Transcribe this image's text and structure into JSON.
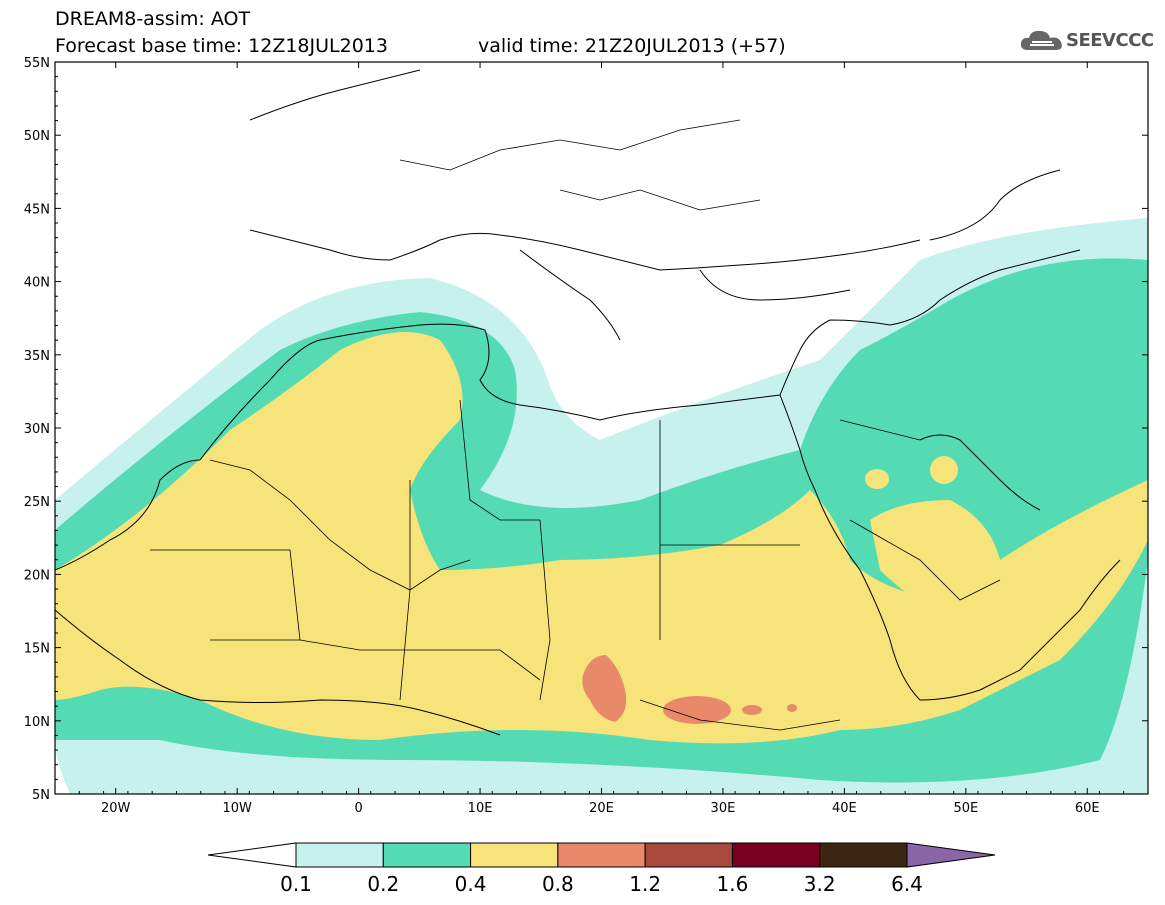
{
  "header": {
    "title": "DREAM8-assim: AOT",
    "base_time": "Forecast base time: 12Z18JUL2013",
    "valid_time": "valid time: 21Z20JUL2013 (+57)"
  },
  "logo": {
    "text": "SEEVCCC",
    "icon": "cloud-icon"
  },
  "map": {
    "lat_labels": [
      "55N",
      "50N",
      "45N",
      "40N",
      "35N",
      "30N",
      "25N",
      "20N",
      "15N",
      "10N",
      "5N"
    ],
    "lat_values": [
      55,
      50,
      45,
      40,
      35,
      30,
      25,
      20,
      15,
      10,
      5
    ],
    "lon_labels": [
      "20W",
      "10W",
      "0",
      "10E",
      "20E",
      "30E",
      "40E",
      "50E",
      "60E"
    ],
    "lon_values": [
      -20,
      -10,
      0,
      10,
      20,
      30,
      40,
      50,
      60
    ],
    "lon_range": [
      -25,
      65
    ],
    "lat_range": [
      5,
      55
    ]
  },
  "colorbar": {
    "labels": [
      "0.1",
      "0.2",
      "0.4",
      "0.8",
      "1.2",
      "1.6",
      "3.2",
      "6.4"
    ],
    "colors": [
      "#ffffff",
      "#c6f1ec",
      "#55dbb4",
      "#f6e47a",
      "#e8896a",
      "#a8493d",
      "#7a0023",
      "#3d2612",
      "#8a66a8"
    ]
  }
}
